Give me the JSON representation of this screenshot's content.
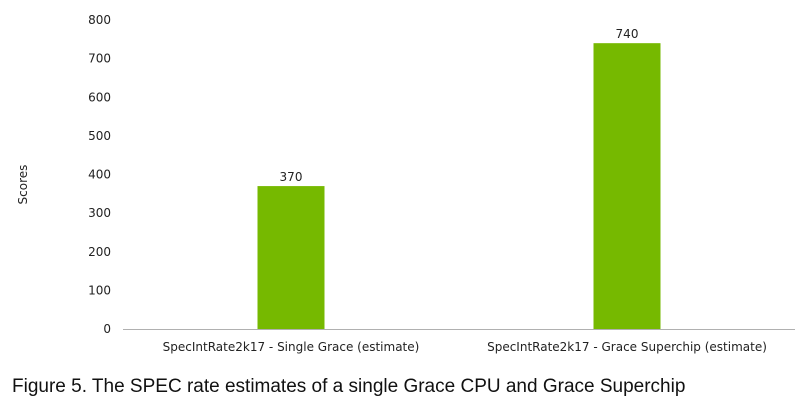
{
  "chart_data": {
    "type": "bar",
    "categories": [
      "SpecIntRate2k17 - Single Grace (estimate)",
      "SpecIntRate2k17 - Grace Superchip (estimate)"
    ],
    "values": [
      370,
      740
    ],
    "data_labels": [
      "370",
      "740"
    ],
    "ylabel": "Scores",
    "xlabel": "",
    "ylim": [
      0,
      800
    ],
    "yticks": [
      0,
      100,
      200,
      300,
      400,
      500,
      600,
      700,
      800
    ],
    "grid": false,
    "legend": "none",
    "bar_color": "#76b900"
  },
  "caption": "Figure 5. The SPEC rate estimates of a single Grace CPU and Grace Superchip"
}
